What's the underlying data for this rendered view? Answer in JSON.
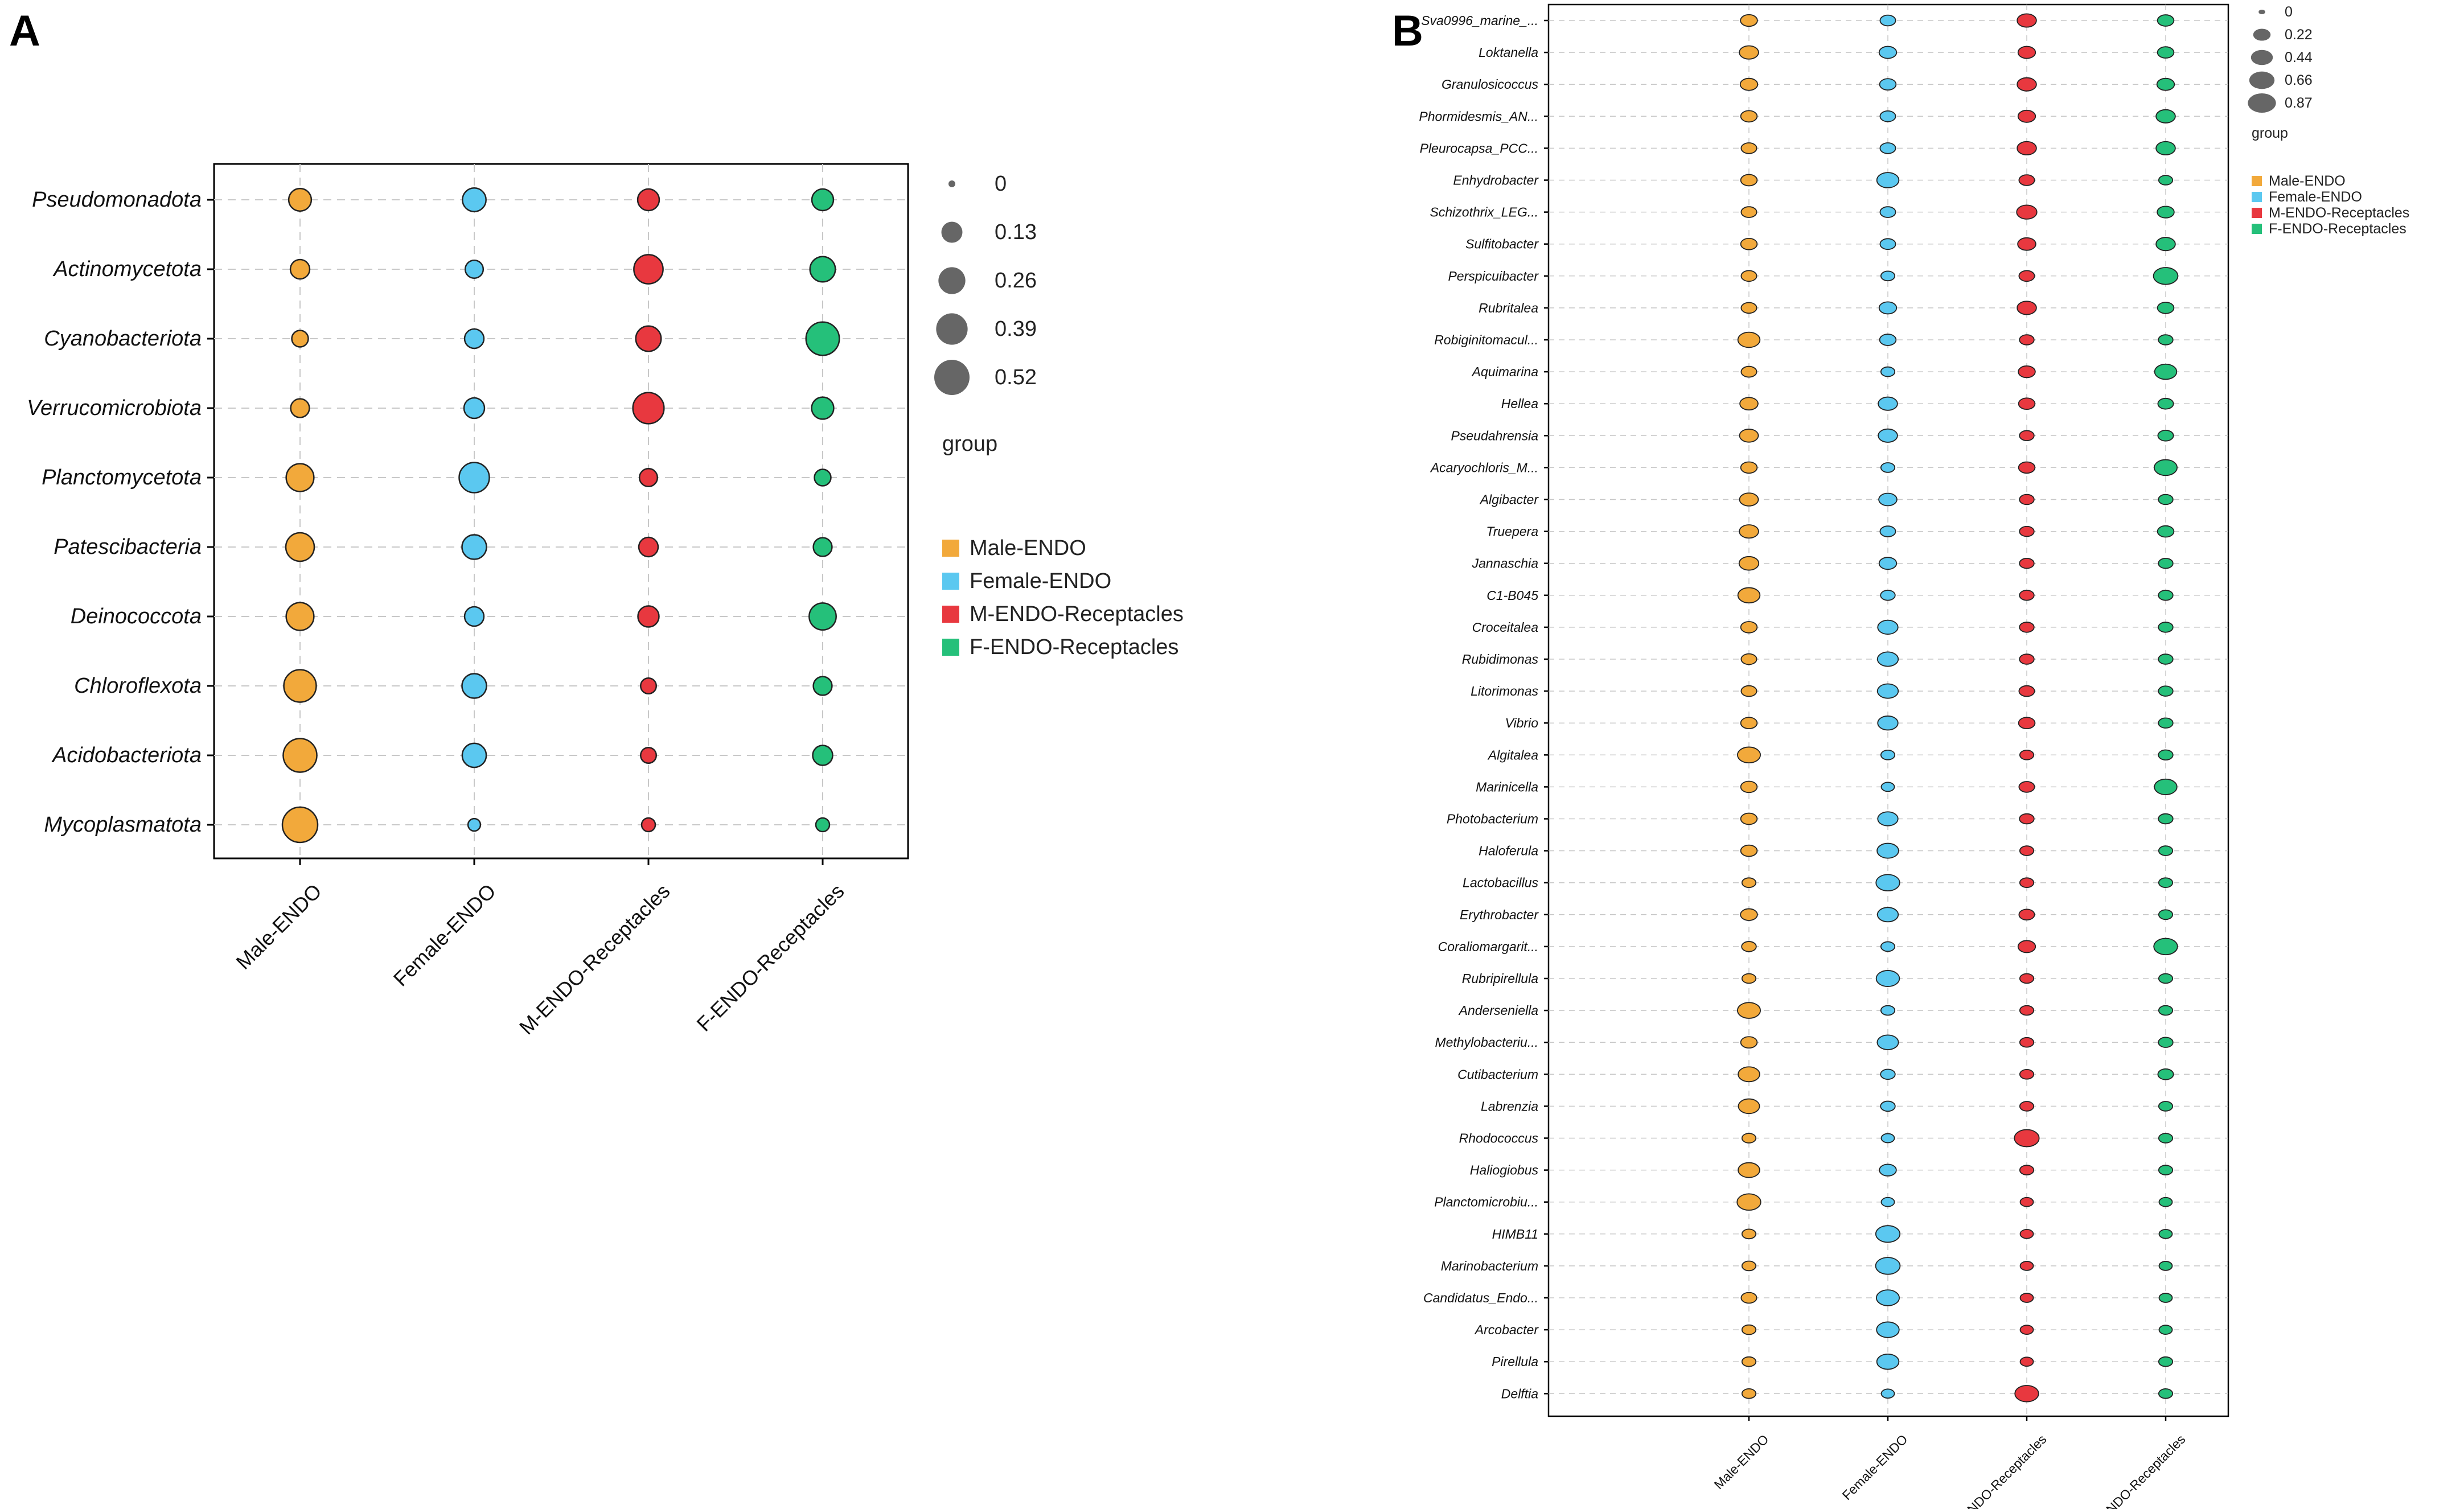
{
  "colors": {
    "male_endo": "#F2A93B",
    "female_endo": "#5BC8F0",
    "m_endo_receptacles": "#E8383F",
    "f_endo_receptacles": "#25C07A",
    "stroke": "#222222",
    "grid": "#c8c8c8",
    "size_legend": "#666666"
  },
  "chart_data": [
    {
      "panel": "A",
      "type": "bubble",
      "categories": [
        "Male-ENDO",
        "Female-ENDO",
        "M-ENDO-Receptacles",
        "F-ENDO-Receptacles"
      ],
      "taxa": [
        "Pseudomonadota",
        "Actinomycetota",
        "Cyanobacteriota",
        "Verrucomicrobiota",
        "Planctomycetota",
        "Patescibacteria",
        "Deinococcota",
        "Chloroflexota",
        "Acidobacteriota",
        "Mycoplasmatota"
      ],
      "values": [
        [
          0.16,
          0.18,
          0.14,
          0.14
        ],
        [
          0.1,
          0.08,
          0.32,
          0.22
        ],
        [
          0.06,
          0.1,
          0.22,
          0.45
        ],
        [
          0.09,
          0.12,
          0.38,
          0.15
        ],
        [
          0.28,
          0.35,
          0.08,
          0.06
        ],
        [
          0.3,
          0.2,
          0.1,
          0.09
        ],
        [
          0.28,
          0.1,
          0.13,
          0.26
        ],
        [
          0.42,
          0.2,
          0.05,
          0.09
        ],
        [
          0.46,
          0.19,
          0.05,
          0.11
        ],
        [
          0.52,
          0.02,
          0.03,
          0.03
        ]
      ],
      "size_legend": {
        "values": [
          0,
          0.13,
          0.26,
          0.39,
          0.52
        ],
        "labels": [
          "0",
          "0.13",
          "0.26",
          "0.39",
          "0.52"
        ],
        "max": 0.52
      },
      "legend_title": "group",
      "legend_entries": [
        "Male-ENDO",
        "Female-ENDO",
        "M-ENDO-Receptacles",
        "F-ENDO-Receptacles"
      ]
    },
    {
      "panel": "B",
      "type": "bubble",
      "categories": [
        "Male-ENDO",
        "Female-ENDO",
        "M-ENDO-Receptacles",
        "F-ENDO-Receptacles"
      ],
      "taxa": [
        "Sva0996_marine_...",
        "Loktanella",
        "Granulosicoccus",
        "Phormidesmis_AN...",
        "Pleurocapsa_PCC...",
        "Enhydrobacter",
        "Schizothrix_LEG...",
        "Sulfitobacter",
        "Perspicuibacter",
        "Rubritalea",
        "Robiginitomacul...",
        "Aquimarina",
        "Hellea",
        "Pseudahrensia",
        "Acaryochloris_M...",
        "Algibacter",
        "Truepera",
        "Jannaschia",
        "C1-B045",
        "Croceitalea",
        "Rubidimonas",
        "Litorimonas",
        "Vibrio",
        "Algitalea",
        "Marinicella",
        "Photobacterium",
        "Haloferula",
        "Lactobacillus",
        "Erythrobacter",
        "Coraliomargarit...",
        "Rubripirellula",
        "Anderseniella",
        "Methylobacteriu...",
        "Cutibacterium",
        "Labrenzia",
        "Rhodococcus",
        "Haliogiobus",
        "Planctomicrobiu...",
        "HIMB11",
        "Marinobacterium",
        "Candidatus_Endo...",
        "Arcobacter",
        "Pirellula",
        "Delftia"
      ],
      "values": [
        [
          0.2,
          0.15,
          0.3,
          0.18
        ],
        [
          0.3,
          0.22,
          0.22,
          0.18
        ],
        [
          0.22,
          0.18,
          0.3,
          0.22
        ],
        [
          0.18,
          0.15,
          0.22,
          0.3
        ],
        [
          0.15,
          0.15,
          0.3,
          0.3
        ],
        [
          0.18,
          0.45,
          0.15,
          0.1
        ],
        [
          0.15,
          0.15,
          0.35,
          0.2
        ],
        [
          0.18,
          0.15,
          0.25,
          0.3
        ],
        [
          0.15,
          0.1,
          0.15,
          0.6
        ],
        [
          0.15,
          0.22,
          0.3,
          0.18
        ],
        [
          0.45,
          0.18,
          0.12,
          0.12
        ],
        [
          0.15,
          0.1,
          0.2,
          0.45
        ],
        [
          0.25,
          0.3,
          0.18,
          0.15
        ],
        [
          0.28,
          0.3,
          0.12,
          0.15
        ],
        [
          0.18,
          0.1,
          0.18,
          0.5
        ],
        [
          0.28,
          0.25,
          0.12,
          0.12
        ],
        [
          0.3,
          0.15,
          0.12,
          0.18
        ],
        [
          0.32,
          0.22,
          0.12,
          0.12
        ],
        [
          0.45,
          0.12,
          0.12,
          0.12
        ],
        [
          0.18,
          0.35,
          0.12,
          0.12
        ],
        [
          0.15,
          0.38,
          0.12,
          0.12
        ],
        [
          0.15,
          0.38,
          0.15,
          0.12
        ],
        [
          0.18,
          0.35,
          0.18,
          0.12
        ],
        [
          0.5,
          0.1,
          0.1,
          0.12
        ],
        [
          0.18,
          0.08,
          0.15,
          0.48
        ],
        [
          0.18,
          0.35,
          0.12,
          0.12
        ],
        [
          0.18,
          0.42,
          0.1,
          0.1
        ],
        [
          0.1,
          0.55,
          0.1,
          0.1
        ],
        [
          0.2,
          0.38,
          0.15,
          0.1
        ],
        [
          0.12,
          0.1,
          0.22,
          0.55
        ],
        [
          0.1,
          0.52,
          0.1,
          0.1
        ],
        [
          0.5,
          0.1,
          0.1,
          0.1
        ],
        [
          0.18,
          0.4,
          0.1,
          0.12
        ],
        [
          0.42,
          0.12,
          0.1,
          0.15
        ],
        [
          0.4,
          0.12,
          0.1,
          0.1
        ],
        [
          0.1,
          0.08,
          0.62,
          0.1
        ],
        [
          0.42,
          0.2,
          0.1,
          0.1
        ],
        [
          0.55,
          0.08,
          0.08,
          0.08
        ],
        [
          0.1,
          0.58,
          0.08,
          0.08
        ],
        [
          0.1,
          0.6,
          0.08,
          0.08
        ],
        [
          0.15,
          0.5,
          0.08,
          0.08
        ],
        [
          0.1,
          0.48,
          0.08,
          0.08
        ],
        [
          0.1,
          0.45,
          0.08,
          0.1
        ],
        [
          0.1,
          0.08,
          0.55,
          0.1
        ]
      ],
      "size_legend": {
        "values": [
          0,
          0.22,
          0.44,
          0.66,
          0.87
        ],
        "labels": [
          "0",
          "0.22",
          "0.44",
          "0.66",
          "0.87"
        ],
        "max": 0.87
      },
      "legend_title": "group",
      "legend_entries": [
        "Male-ENDO",
        "Female-ENDO",
        "M-ENDO-Receptacles",
        "F-ENDO-Receptacles"
      ]
    }
  ],
  "panel_labels": [
    "A",
    "B"
  ]
}
